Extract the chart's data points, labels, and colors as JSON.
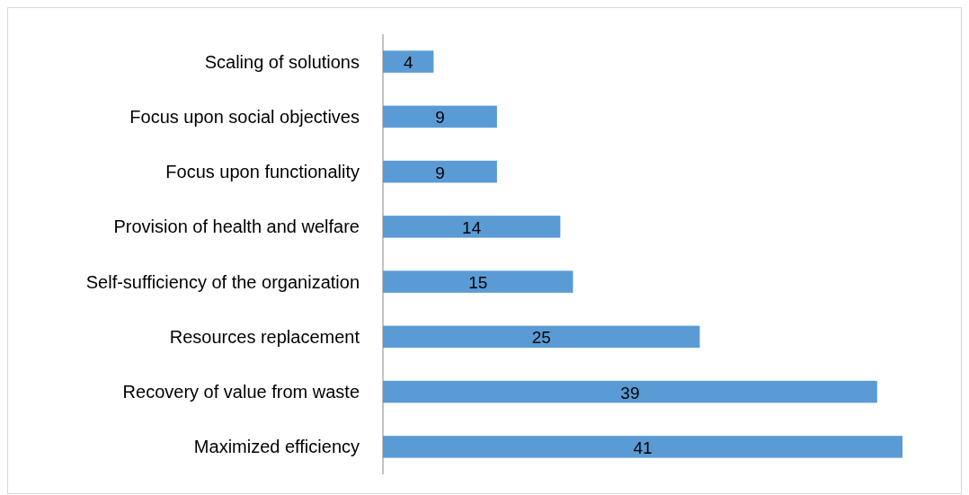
{
  "chart_data": {
    "type": "bar",
    "orientation": "horizontal",
    "categories": [
      "Scaling of solutions",
      "Focus upon social objectives",
      "Focus upon functionality",
      "Provision of health and welfare",
      "Self-sufficiency of the organization",
      "Resources replacement",
      "Recovery of value from waste",
      "Maximized efficiency"
    ],
    "values": [
      4,
      9,
      9,
      14,
      15,
      25,
      39,
      41
    ],
    "color": "#5b9bd5",
    "data_labels": true
  }
}
